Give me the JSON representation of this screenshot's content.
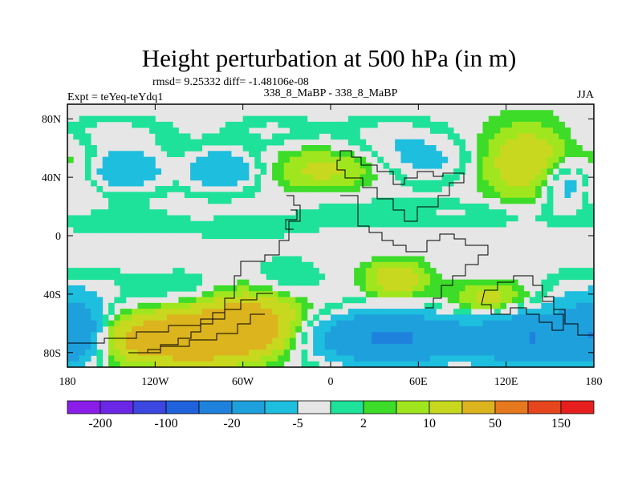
{
  "chart_data": {
    "type": "heatmap",
    "title": "Height perturbation at 500 hPa (in m)",
    "stats": "rmsd= 9.25332 diff= -1.48106e-08",
    "subtitle_left": "Expt = teYeq-teYdq1",
    "subtitle_center": "338_8_MaBP - 338_8_MaBP",
    "subtitle_right": "JJA",
    "xlim": [
      -180,
      180
    ],
    "ylim": [
      -90,
      90
    ],
    "xticks": [
      {
        "v": -180,
        "label": "180"
      },
      {
        "v": -120,
        "label": "120W"
      },
      {
        "v": -60,
        "label": "60W"
      },
      {
        "v": 0,
        "label": "0"
      },
      {
        "v": 60,
        "label": "60E"
      },
      {
        "v": 120,
        "label": "120E"
      },
      {
        "v": 180,
        "label": "180"
      }
    ],
    "yticks": [
      {
        "v": 80,
        "label": "80N"
      },
      {
        "v": 40,
        "label": "40N"
      },
      {
        "v": 0,
        "label": "0"
      },
      {
        "v": -40,
        "label": "40S"
      },
      {
        "v": -80,
        "label": "80S"
      }
    ],
    "colorbar": {
      "colors": [
        "#8a1ee8",
        "#6a28e6",
        "#3c46e0",
        "#1f62dc",
        "#1e82dc",
        "#1ea0dc",
        "#1ebede",
        "#e6e6e6",
        "#1ee29a",
        "#3cdc28",
        "#a0e61e",
        "#c8d81e",
        "#dcb41e",
        "#e6781e",
        "#e6461e",
        "#e61e1e"
      ],
      "labels": [
        {
          "boundary": 1,
          "text": "-200"
        },
        {
          "boundary": 3,
          "text": "-100"
        },
        {
          "boundary": 5,
          "text": "-20"
        },
        {
          "boundary": 7,
          "text": "-5"
        },
        {
          "boundary": 9,
          "text": "2"
        },
        {
          "boundary": 11,
          "text": "10"
        },
        {
          "boundary": 13,
          "text": "50"
        },
        {
          "boundary": 15,
          "text": "150"
        }
      ]
    },
    "features": [
      {
        "name": "arctic-low-band",
        "lon": -150,
        "lat": 70,
        "rx": 40,
        "ry": 12,
        "amp": -7
      },
      {
        "name": "arctic-low-center",
        "lon": -40,
        "lat": 72,
        "rx": 30,
        "ry": 10,
        "amp": -6
      },
      {
        "name": "arctic-low-east",
        "lon": 40,
        "lat": 68,
        "rx": 35,
        "ry": 14,
        "amp": -7
      },
      {
        "name": "pacific-low-west",
        "lon": -140,
        "lat": 45,
        "rx": 25,
        "ry": 14,
        "amp": -20
      },
      {
        "name": "atlantic-low",
        "lon": -75,
        "lat": 45,
        "rx": 25,
        "ry": 14,
        "amp": -20
      },
      {
        "name": "eurasia-high",
        "lon": -5,
        "lat": 45,
        "rx": 35,
        "ry": 14,
        "amp": 12
      },
      {
        "name": "asia-low",
        "lon": 65,
        "lat": 52,
        "rx": 30,
        "ry": 15,
        "amp": -12
      },
      {
        "name": "pacific-high-east",
        "lon": 135,
        "lat": 50,
        "rx": 30,
        "ry": 25,
        "amp": 18
      },
      {
        "name": "pacific-low-east",
        "lon": 162,
        "lat": 35,
        "rx": 18,
        "ry": 18,
        "amp": -18
      },
      {
        "name": "west-boundary-high",
        "lon": -178,
        "lat": 40,
        "rx": 18,
        "ry": 25,
        "amp": 6
      },
      {
        "name": "tropic-low-pacific",
        "lon": -150,
        "lat": 10,
        "rx": 45,
        "ry": 10,
        "amp": -5
      },
      {
        "name": "tropic-low-america",
        "lon": -60,
        "lat": 5,
        "rx": 40,
        "ry": 8,
        "amp": -4
      },
      {
        "name": "tropic-low-africa",
        "lon": 20,
        "lat": 15,
        "rx": 50,
        "ry": 12,
        "amp": -4
      },
      {
        "name": "tropic-low-asia",
        "lon": 100,
        "lat": 15,
        "rx": 50,
        "ry": 10,
        "amp": -5
      },
      {
        "name": "south-pacific-low-a",
        "lon": -160,
        "lat": -38,
        "rx": 30,
        "ry": 14,
        "amp": -6
      },
      {
        "name": "south-pacific-low-b",
        "lon": -100,
        "lat": -35,
        "rx": 30,
        "ry": 12,
        "amp": -5
      },
      {
        "name": "south-atlantic-low",
        "lon": -30,
        "lat": -30,
        "rx": 25,
        "ry": 15,
        "amp": -6
      },
      {
        "name": "south-indian-high-a",
        "lon": 45,
        "lat": -30,
        "rx": 20,
        "ry": 12,
        "amp": 18
      },
      {
        "name": "south-indian-high-b",
        "lon": 110,
        "lat": -45,
        "rx": 28,
        "ry": 12,
        "amp": 15
      },
      {
        "name": "south-low-east",
        "lon": 160,
        "lat": -40,
        "rx": 18,
        "ry": 15,
        "amp": -6
      },
      {
        "name": "antarctic-high-a",
        "lon": -95,
        "lat": -70,
        "rx": 55,
        "ry": 16,
        "amp": 45
      },
      {
        "name": "antarctic-high-b",
        "lon": -55,
        "lat": -55,
        "rx": 35,
        "ry": 18,
        "amp": 22
      },
      {
        "name": "antarctic-low-a",
        "lon": 40,
        "lat": -70,
        "rx": 50,
        "ry": 16,
        "amp": -55
      },
      {
        "name": "antarctic-low-b",
        "lon": 140,
        "lat": -70,
        "rx": 40,
        "ry": 18,
        "amp": -50
      },
      {
        "name": "antarctic-low-west",
        "lon": -175,
        "lat": -65,
        "rx": 18,
        "ry": 20,
        "amp": -40
      }
    ]
  }
}
